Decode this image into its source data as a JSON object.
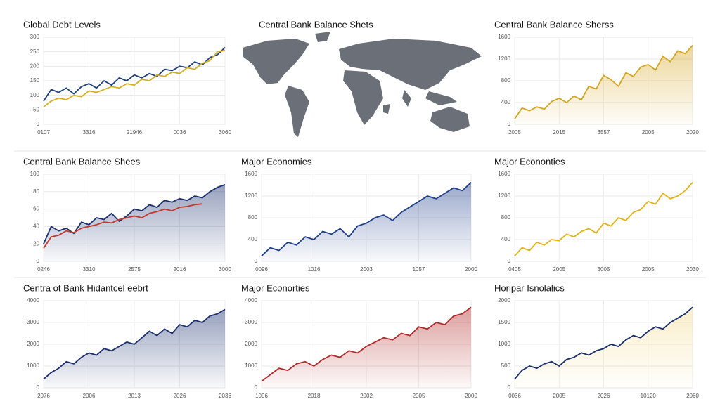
{
  "chart_data": [
    {
      "type": "line",
      "title": "Global Debt Levels",
      "ylim": [
        0,
        300
      ],
      "yticks": [
        0,
        50,
        100,
        150,
        200,
        250,
        300
      ],
      "grid": true,
      "categories": [
        "0107",
        null,
        null,
        null,
        null,
        null,
        "3316",
        null,
        null,
        null,
        null,
        null,
        "21946",
        null,
        null,
        null,
        null,
        null,
        "0036",
        null,
        null,
        null,
        null,
        null,
        "3060"
      ],
      "series": [
        {
          "color": "#1f3f7a",
          "values": [
            80,
            120,
            110,
            125,
            105,
            130,
            140,
            125,
            150,
            135,
            160,
            150,
            170,
            160,
            175,
            165,
            190,
            185,
            200,
            195,
            215,
            205,
            230,
            240,
            265
          ]
        },
        {
          "color": "#d4b020",
          "values": [
            60,
            80,
            90,
            85,
            100,
            95,
            115,
            110,
            120,
            130,
            125,
            140,
            135,
            155,
            150,
            170,
            165,
            180,
            175,
            195,
            190,
            210,
            220,
            250,
            255
          ]
        }
      ]
    },
    {
      "type": "map",
      "title": "Central Bank Balance Shets"
    },
    {
      "type": "line",
      "title": "Central Bank Balance Sherss",
      "ylim": [
        0,
        1600
      ],
      "yticks": [
        0,
        400,
        800,
        1200,
        1600
      ],
      "grid": true,
      "area": true,
      "categories": [
        "2005",
        null,
        null,
        null,
        null,
        null,
        "2015",
        null,
        null,
        null,
        null,
        null,
        "3557",
        null,
        null,
        null,
        null,
        null,
        "2005",
        null,
        null,
        null,
        null,
        null,
        "2020"
      ],
      "series": [
        {
          "color": "#d4a520",
          "values": [
            100,
            300,
            250,
            320,
            280,
            420,
            480,
            400,
            520,
            450,
            700,
            650,
            900,
            820,
            700,
            950,
            880,
            1050,
            1100,
            1000,
            1250,
            1150,
            1350,
            1300,
            1450
          ]
        }
      ]
    },
    {
      "type": "line",
      "title": "Central Bank Balance Shees",
      "ylim": [
        0,
        100
      ],
      "yticks": [
        0,
        20,
        40,
        60,
        80,
        100
      ],
      "grid": true,
      "area": true,
      "categories": [
        "0246",
        null,
        null,
        null,
        null,
        null,
        "3310",
        null,
        null,
        null,
        null,
        null,
        "2575",
        null,
        null,
        null,
        null,
        null,
        "2016",
        null,
        null,
        null,
        null,
        null,
        "3000"
      ],
      "series": [
        {
          "color": "#1a2f6e",
          "values": [
            20,
            40,
            35,
            38,
            32,
            45,
            42,
            50,
            48,
            55,
            46,
            52,
            60,
            58,
            65,
            62,
            70,
            68,
            72,
            70,
            75,
            73,
            80,
            85,
            88
          ]
        },
        {
          "color": "#c0392b",
          "values": [
            15,
            28,
            30,
            35,
            33,
            38,
            40,
            42,
            45,
            44,
            48,
            50,
            52,
            50,
            55,
            57,
            60,
            58,
            62,
            63,
            65,
            66,
            null,
            null,
            null
          ]
        }
      ]
    },
    {
      "type": "line",
      "title": "Major Economies",
      "ylim": [
        0,
        1600
      ],
      "yticks": [
        0,
        400,
        800,
        1200,
        1600
      ],
      "grid": true,
      "area": true,
      "categories": [
        "0096",
        null,
        null,
        null,
        null,
        null,
        "1016",
        null,
        null,
        null,
        null,
        null,
        "2003",
        null,
        null,
        null,
        null,
        null,
        "1057",
        null,
        null,
        null,
        null,
        null,
        "2000"
      ],
      "series": [
        {
          "color": "#1f3f8a",
          "values": [
            100,
            250,
            200,
            350,
            300,
            450,
            400,
            550,
            500,
            600,
            450,
            650,
            700,
            800,
            850,
            750,
            900,
            1000,
            1100,
            1200,
            1150,
            1250,
            1350,
            1300,
            1450
          ]
        }
      ]
    },
    {
      "type": "line",
      "title": "Major Econonties",
      "ylim": [
        0,
        1600
      ],
      "yticks": [
        0,
        400,
        800,
        1200,
        1600
      ],
      "grid": true,
      "categories": [
        "0405",
        null,
        null,
        null,
        null,
        null,
        "2005",
        null,
        null,
        null,
        null,
        null,
        "3005",
        null,
        null,
        null,
        null,
        null,
        "2005",
        null,
        null,
        null,
        null,
        null,
        "2030"
      ],
      "series": [
        {
          "color": "#e0b418",
          "values": [
            100,
            250,
            200,
            350,
            300,
            400,
            380,
            500,
            450,
            550,
            600,
            520,
            700,
            650,
            800,
            750,
            900,
            950,
            1100,
            1050,
            1250,
            1150,
            1200,
            1300,
            1450
          ]
        }
      ]
    },
    {
      "type": "line",
      "title": "Centra ot Bank Hidantcel eebrt",
      "ylim": [
        0,
        4000
      ],
      "yticks": [
        0,
        1000,
        2000,
        3000,
        4000
      ],
      "grid": true,
      "area": true,
      "categories": [
        "2076",
        null,
        null,
        null,
        null,
        null,
        "2006",
        null,
        null,
        null,
        null,
        null,
        "2013",
        null,
        null,
        null,
        null,
        null,
        "2026",
        null,
        null,
        null,
        null,
        null,
        "2036"
      ],
      "series": [
        {
          "color": "#1a2f6e",
          "values": [
            400,
            700,
            900,
            1200,
            1100,
            1400,
            1600,
            1500,
            1800,
            1700,
            1900,
            2100,
            2000,
            2300,
            2600,
            2400,
            2700,
            2500,
            2900,
            2800,
            3100,
            3000,
            3300,
            3400,
            3600
          ]
        }
      ]
    },
    {
      "type": "line",
      "title": "Major Econorties",
      "ylim": [
        0,
        4000
      ],
      "yticks": [
        0,
        1000,
        2000,
        3000,
        4000
      ],
      "grid": true,
      "area": true,
      "categories": [
        "1096",
        null,
        null,
        null,
        null,
        null,
        "2018",
        null,
        null,
        null,
        null,
        null,
        "2002",
        null,
        null,
        null,
        null,
        null,
        "2005",
        null,
        null,
        null,
        null,
        null,
        "2000"
      ],
      "series": [
        {
          "color": "#b22a2a",
          "values": [
            300,
            600,
            900,
            800,
            1100,
            1200,
            1000,
            1300,
            1500,
            1400,
            1700,
            1600,
            1900,
            2100,
            2300,
            2200,
            2500,
            2400,
            2800,
            2700,
            3000,
            2900,
            3300,
            3400,
            3700
          ]
        }
      ]
    },
    {
      "type": "line",
      "title": "Horipar Isnolalics",
      "ylim": [
        0,
        2000
      ],
      "yticks": [
        0,
        500,
        1000,
        1500,
        2000
      ],
      "grid": true,
      "area": true,
      "fill_color": "#f3d98a",
      "categories": [
        "0036",
        null,
        null,
        null,
        null,
        null,
        "2005",
        null,
        null,
        null,
        null,
        null,
        "2026",
        null,
        null,
        null,
        null,
        null,
        "10120",
        null,
        null,
        null,
        null,
        null,
        "2060"
      ],
      "series": [
        {
          "color": "#1a2f6e",
          "values": [
            200,
            400,
            500,
            450,
            550,
            600,
            500,
            650,
            700,
            800,
            750,
            850,
            900,
            1000,
            950,
            1100,
            1200,
            1150,
            1300,
            1400,
            1350,
            1500,
            1600,
            1700,
            1850
          ]
        }
      ]
    }
  ]
}
